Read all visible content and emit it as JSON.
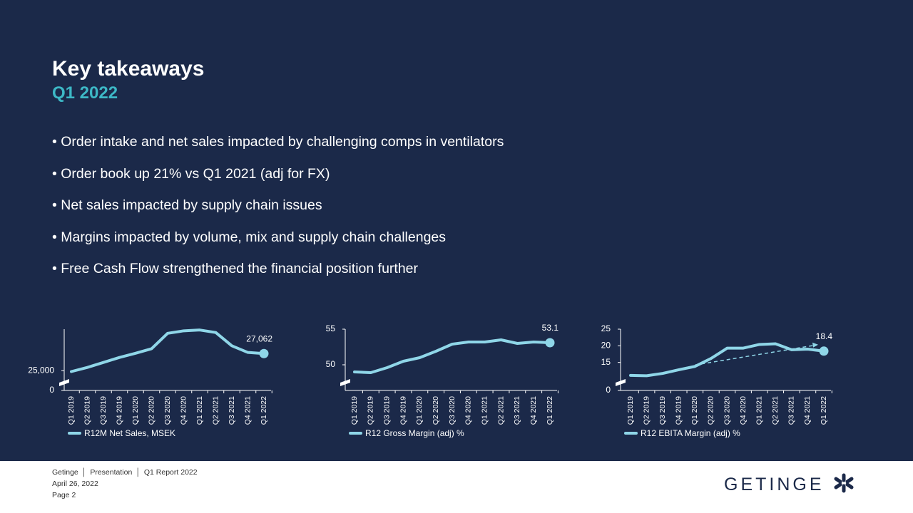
{
  "header": {
    "title": "Key takeaways",
    "subtitle": "Q1 2022"
  },
  "bullets": [
    "Order intake and net sales impacted by challenging comps in ventilators",
    "Order book up 21% vs Q1 2021 (adj for FX)",
    "Net sales impacted by supply chain issues",
    "Margins impacted by volume, mix and supply chain challenges",
    "Free Cash Flow strengthened the financial position further"
  ],
  "chart_data": [
    {
      "type": "line",
      "categories": [
        "Q1 2019",
        "Q2 2019",
        "Q3 2019",
        "Q4 2019",
        "Q1 2020",
        "Q2 2020",
        "Q3 2020",
        "Q4 2020",
        "Q1 2021",
        "Q2 2021",
        "Q3 2021",
        "Q4 2021",
        "Q1 2022"
      ],
      "series": [
        {
          "name": "R12M Net Sales, MSEK",
          "color": "#8fd6e8",
          "values": [
            24900,
            25400,
            26000,
            26600,
            27100,
            27650,
            29500,
            29800,
            29900,
            29600,
            28000,
            27200,
            27062
          ],
          "value_labels": [
            null,
            null,
            null,
            null,
            null,
            null,
            null,
            null,
            null,
            null,
            null,
            null,
            "27,062"
          ]
        }
      ],
      "ylim": [
        0,
        30000
      ],
      "axis_break": [
        0,
        24000
      ],
      "yticks": [
        0,
        {
          "value": 25000,
          "label": "25,000"
        }
      ]
    },
    {
      "type": "line",
      "categories": [
        "Q1 2019",
        "Q2 2019",
        "Q3 2019",
        "Q4 2019",
        "Q1 2020",
        "Q2 2020",
        "Q3 2020",
        "Q4 2020",
        "Q1 2021",
        "Q2 2021",
        "Q3 2021",
        "Q4 2021",
        "Q1 2022"
      ],
      "series": [
        {
          "name": "R12 Gross Margin (adj) %",
          "color": "#8fd6e8",
          "values": [
            49.0,
            48.9,
            49.6,
            50.5,
            51.0,
            51.9,
            52.9,
            53.2,
            53.2,
            53.5,
            53.0,
            53.2,
            53.1
          ],
          "value_labels": [
            null,
            null,
            null,
            null,
            null,
            null,
            null,
            null,
            null,
            null,
            null,
            null,
            "53.1"
          ]
        }
      ],
      "ylim": [
        0,
        55
      ],
      "axis_break": [
        0,
        48
      ],
      "yticks": [
        50,
        55
      ]
    },
    {
      "type": "line",
      "categories": [
        "Q1 2019",
        "Q2 2019",
        "Q3 2019",
        "Q4 2019",
        "Q1 2020",
        "Q2 2020",
        "Q3 2020",
        "Q4 2020",
        "Q1 2021",
        "Q2 2021",
        "Q3 2021",
        "Q4 2021",
        "Q1 2022"
      ],
      "series": [
        {
          "name": "R12 EBITA Margin (adj) %",
          "color": "#8fd6e8",
          "values": [
            11.1,
            11.0,
            11.7,
            12.8,
            13.8,
            16.2,
            19.3,
            19.3,
            20.4,
            20.6,
            18.8,
            19.0,
            18.4
          ],
          "value_labels": [
            null,
            null,
            null,
            null,
            null,
            null,
            null,
            null,
            null,
            null,
            null,
            null,
            "18.4"
          ]
        }
      ],
      "ylim": [
        0,
        25
      ],
      "axis_break": [
        0,
        10
      ],
      "yticks": [
        0,
        15,
        20,
        25
      ],
      "trend_arrow": true
    }
  ],
  "footer": {
    "company": "Getinge",
    "doc_type": "Presentation",
    "report": "Q1 Report 2022",
    "date": "April 26, 2022",
    "page": "Page 2",
    "logo": "GETINGE"
  }
}
